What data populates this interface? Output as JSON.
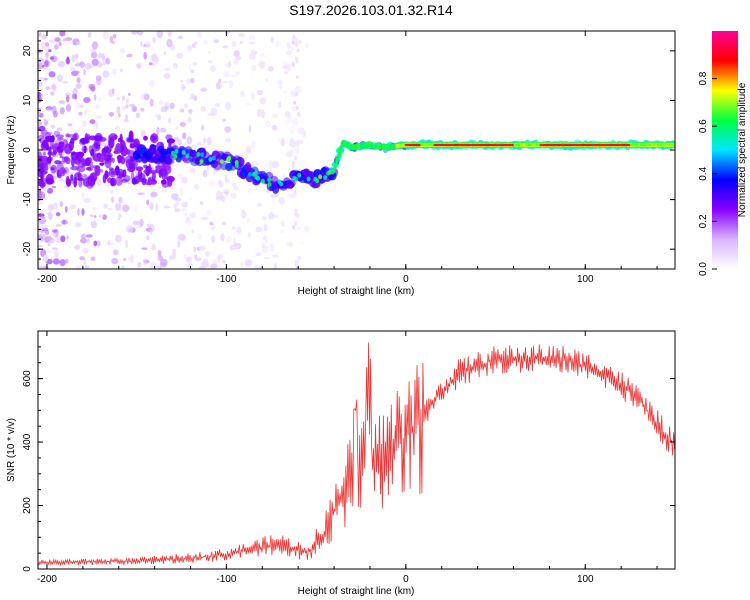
{
  "figure": {
    "title": "S197.2026.103.01.32.R14"
  },
  "chart_data": [
    {
      "type": "heatmap",
      "name": "spectrogram",
      "xlabel": "Height of straight line (km)",
      "ylabel": "Frequency (Hz)",
      "xlim": [
        -205,
        150
      ],
      "ylim": [
        -24,
        24
      ],
      "x_ticks": [
        -200,
        -100,
        0,
        100
      ],
      "y_ticks": [
        20,
        10,
        0,
        -10,
        -20
      ],
      "colorbar": {
        "label": "Normalized spectral amplitude",
        "range": [
          0,
          1
        ],
        "ticks": [
          0.0,
          0.2,
          0.4,
          0.6,
          0.8
        ],
        "tick_labels": [
          "0.0",
          "0.2",
          "0.4",
          "0.6",
          "0.8"
        ],
        "colors": [
          "#ffffff",
          "#d9b3ff",
          "#8800ff",
          "#0000ff",
          "#00e5ff",
          "#00ff40",
          "#ffff00",
          "#ff0000",
          "#ff0099"
        ]
      },
      "ridge": {
        "x": [
          -130,
          -120,
          -110,
          -100,
          -90,
          -80,
          -70,
          -65,
          -60,
          -50,
          -40,
          -35,
          -30,
          -20,
          -10,
          0,
          150
        ],
        "freq": [
          -1.0,
          -1.0,
          -2.0,
          -2.0,
          -4.0,
          -6.0,
          -7.0,
          -6.0,
          -5.0,
          -6.0,
          -4.0,
          1.5,
          0.5,
          1.0,
          0.5,
          1.0,
          1.0
        ]
      }
    },
    {
      "type": "line",
      "name": "snr",
      "xlabel": "Height of straight line (km)",
      "ylabel": "SNR (10 * v/v)",
      "xlim": [
        -205,
        150
      ],
      "ylim": [
        0,
        750
      ],
      "x_ticks": [
        -200,
        -100,
        0,
        100
      ],
      "y_ticks": [
        0,
        200,
        400,
        600
      ],
      "color": "#ee3333",
      "envelope": {
        "x": [
          -205,
          -150,
          -120,
          -100,
          -80,
          -70,
          -55,
          -45,
          -35,
          -25,
          -10,
          0,
          10,
          20,
          30,
          50,
          70,
          90,
          100,
          110,
          120,
          130,
          140,
          150
        ],
        "y": [
          20,
          25,
          35,
          45,
          70,
          80,
          50,
          120,
          250,
          320,
          350,
          420,
          480,
          560,
          620,
          660,
          665,
          660,
          640,
          620,
          580,
          530,
          460,
          380
        ]
      }
    }
  ]
}
